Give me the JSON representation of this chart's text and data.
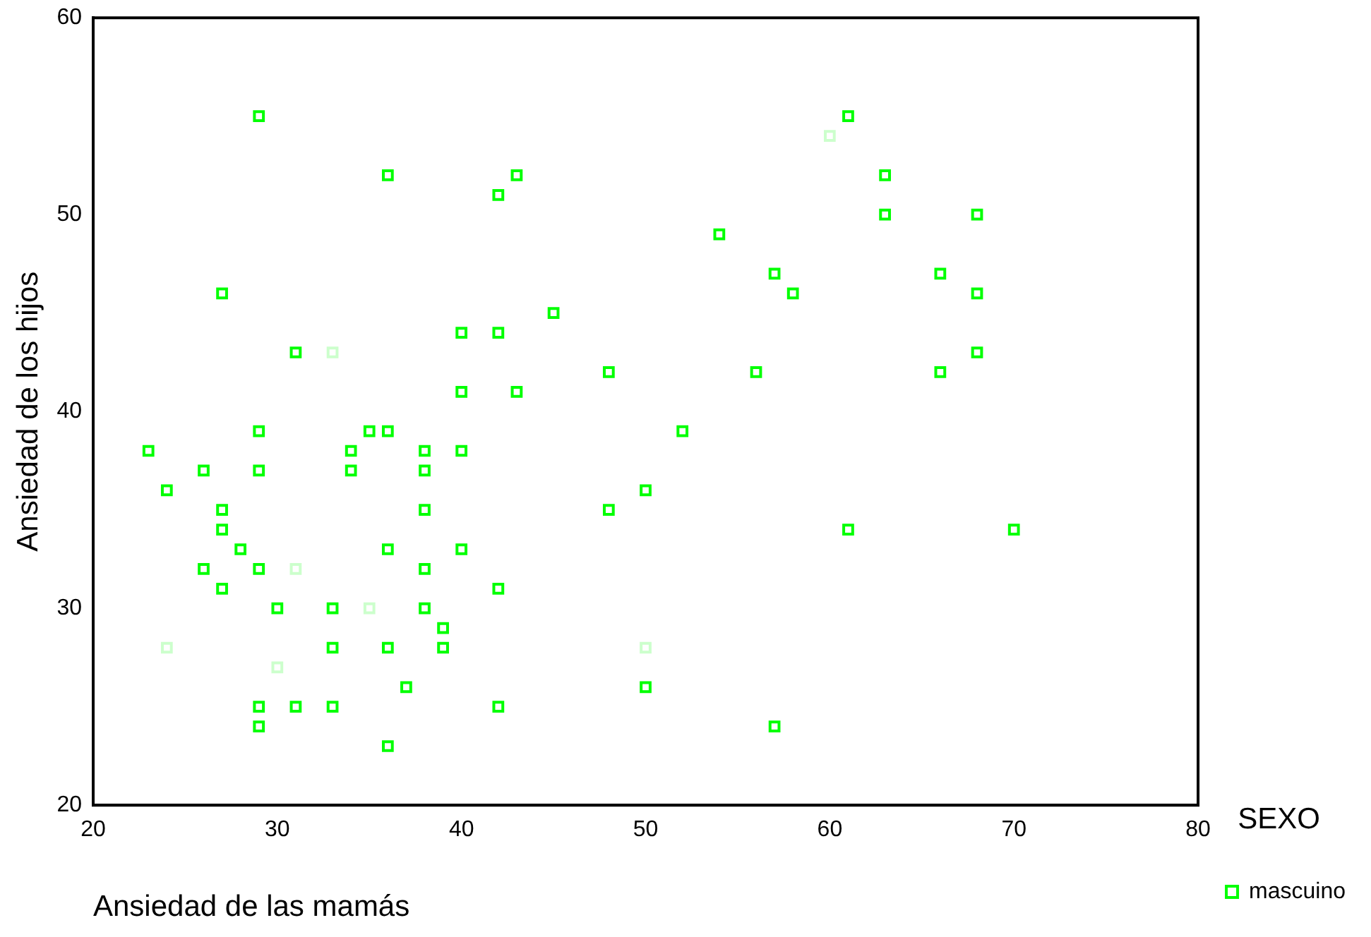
{
  "chart_data": {
    "type": "scatter",
    "xlabel": "Ansiedad de las mamás",
    "ylabel": "Ansiedad de los hijos",
    "legend_title": "SEXO",
    "legend": "right",
    "marker": "square",
    "grid": false,
    "xlim": [
      20,
      80
    ],
    "xticks": [
      20,
      30,
      40,
      50,
      60,
      70,
      80
    ],
    "ylim": [
      20,
      60
    ],
    "yticks": [
      20,
      30,
      40,
      50,
      60
    ],
    "series": [
      {
        "name": "mascuino",
        "color": "#00ff00",
        "x": [
          29,
          36,
          43,
          42,
          27,
          31,
          40,
          42,
          45,
          40,
          43,
          29,
          35,
          36,
          23,
          34,
          38,
          40,
          26,
          29,
          34,
          38,
          24,
          27,
          38,
          27,
          28,
          36,
          40,
          26,
          29,
          38,
          27,
          42,
          30,
          33,
          38,
          39,
          33,
          36,
          39,
          37,
          29,
          31,
          33,
          42,
          29,
          36,
          61,
          63,
          63,
          68,
          54,
          57,
          66,
          58,
          68,
          68,
          48,
          56,
          66,
          52,
          50,
          48,
          61,
          70,
          50,
          57
        ],
        "values": [
          55,
          52,
          52,
          51,
          46,
          43,
          44,
          44,
          45,
          41,
          41,
          39,
          39,
          39,
          38,
          38,
          38,
          38,
          37,
          37,
          37,
          37,
          36,
          35,
          35,
          34,
          33,
          33,
          33,
          32,
          32,
          32,
          31,
          31,
          30,
          30,
          30,
          29,
          28,
          28,
          28,
          26,
          25,
          25,
          25,
          25,
          24,
          23,
          55,
          52,
          50,
          50,
          49,
          47,
          47,
          46,
          46,
          43,
          42,
          42,
          42,
          39,
          36,
          35,
          34,
          34,
          26,
          24
        ]
      },
      {
        "color": "#ccffcc",
        "x": [
          60,
          33,
          31,
          35,
          24,
          30,
          50
        ],
        "values": [
          54,
          43,
          32,
          30,
          28,
          27,
          28
        ]
      }
    ]
  }
}
